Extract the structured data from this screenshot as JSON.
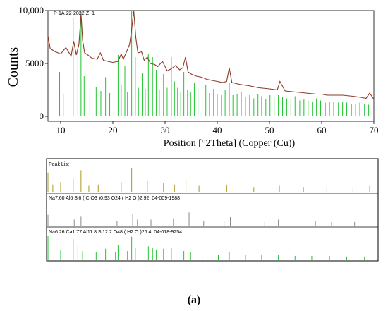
{
  "chart_data": [
    {
      "type": "line",
      "sample_label": "P-1A-22-2022-Z_1",
      "ylabel": "Counts",
      "xlabel": "Position [°2Theta] (Copper (Cu))",
      "xlim": [
        5,
        70
      ],
      "ylim": [
        0,
        10000
      ],
      "x_ticks": [
        "10",
        "20",
        "30",
        "40",
        "50",
        "60",
        "70"
      ],
      "y_ticks": [
        "0",
        "5000",
        "10,000"
      ],
      "grid": false,
      "series": [
        {
          "type": "line",
          "color": "#8b3a2a",
          "x": [
            5.0,
            6.0,
            7.0,
            7.5,
            8.0,
            9.0,
            10.0,
            11.0,
            12.0,
            12.5,
            13.0,
            13.5,
            13.9,
            14.2,
            14.6,
            15.2,
            16.0,
            17.0,
            17.6,
            18.2,
            19.0,
            20.0,
            21.0,
            21.6,
            22.0,
            22.7,
            23.2,
            23.6,
            24.0,
            24.4,
            24.8,
            25.5,
            26.0,
            26.6,
            27.2,
            28.0,
            28.6,
            29.5,
            30.4,
            31.2,
            32.0,
            32.8,
            33.4,
            33.9,
            34.4,
            35.0,
            36.0,
            37.0,
            38.0,
            39.0,
            40.0,
            41.0,
            41.8,
            42.3,
            42.8,
            43.6,
            44.6,
            46.0,
            47.0,
            48.0,
            50.0,
            51.5,
            52.0,
            53.0,
            55.0,
            57.0,
            59.0,
            60.0,
            61.0,
            62.5,
            64.0,
            66.0,
            67.5,
            68.5,
            69.2,
            70.0
          ],
          "y": [
            7000,
            6900,
            6600,
            7600,
            6400,
            6100,
            5900,
            6500,
            5700,
            7100,
            5800,
            6800,
            9700,
            7200,
            6000,
            5800,
            5500,
            5400,
            6000,
            5300,
            5200,
            5100,
            5200,
            5900,
            5400,
            6200,
            6800,
            8200,
            10000,
            7400,
            6000,
            6100,
            5300,
            5600,
            5000,
            4900,
            4700,
            5200,
            4300,
            4500,
            4800,
            4400,
            4600,
            5600,
            4200,
            4000,
            3800,
            3700,
            3500,
            3400,
            3300,
            3200,
            3300,
            4600,
            3200,
            3100,
            3000,
            2900,
            2800,
            2700,
            2600,
            2500,
            3300,
            2400,
            2300,
            2200,
            2100,
            2100,
            2000,
            2000,
            2000,
            1900,
            1800,
            1700,
            2200,
            1600
          ]
        },
        {
          "type": "stick",
          "color": "#22c432",
          "x": [
            7.3,
            7.5,
            9.8,
            10.5,
            12.4,
            13.3,
            13.9,
            14.5,
            15.6,
            16.8,
            17.7,
            18.6,
            19.4,
            20.2,
            21.0,
            21.6,
            22.3,
            22.8,
            23.6,
            24.3,
            24.9,
            25.6,
            26.2,
            26.8,
            27.6,
            28.3,
            28.9,
            29.7,
            30.4,
            31.2,
            31.8,
            32.4,
            33.0,
            33.6,
            34.3,
            34.9,
            35.6,
            36.3,
            37.1,
            37.8,
            38.5,
            39.3,
            40.0,
            40.8,
            41.5,
            42.3,
            43.0,
            43.8,
            44.6,
            45.4,
            46.2,
            47.0,
            47.8,
            48.5,
            49.3,
            50.1,
            50.9,
            51.7,
            52.5,
            53.3,
            54.1,
            54.9,
            55.8,
            56.6,
            57.4,
            58.2,
            59.0,
            59.8,
            60.7,
            61.5,
            62.3,
            63.2,
            64.0,
            64.8,
            65.7,
            66.5,
            67.3,
            68.2,
            69.0
          ],
          "y": [
            10000,
            9800,
            4200,
            2100,
            9300,
            7000,
            9900,
            3800,
            2600,
            2800,
            2400,
            3700,
            2200,
            2600,
            5800,
            3000,
            4800,
            2300,
            10000,
            5600,
            2700,
            4100,
            2600,
            5900,
            5600,
            4400,
            2500,
            4000,
            2700,
            5600,
            3300,
            2700,
            2300,
            4200,
            2500,
            2300,
            3200,
            2700,
            2300,
            3000,
            2200,
            2600,
            2100,
            2000,
            2500,
            3200,
            2000,
            2100,
            2300,
            1800,
            2000,
            1700,
            2100,
            1900,
            1600,
            2000,
            1800,
            2000,
            1800,
            1700,
            1600,
            1900,
            1500,
            1600,
            1500,
            1400,
            1700,
            1500,
            1300,
            1400,
            1400,
            1300,
            1400,
            1300,
            1200,
            1200,
            1300,
            1200,
            1100
          ]
        }
      ]
    },
    {
      "type": "table",
      "panels": [
        {
          "label": "Peak List",
          "color": "#a89a20",
          "x": [
            6.0,
            7.3,
            8.5,
            10.0,
            12.4,
            13.9,
            15.4,
            17.2,
            21.6,
            23.6,
            26.6,
            29.7,
            31.8,
            34.0,
            36.5,
            41.8,
            47.0,
            51.9,
            56.5,
            61.0,
            66.0,
            69.2
          ],
          "h": [
            0.6,
            0.8,
            0.3,
            0.4,
            0.55,
            0.9,
            0.25,
            0.3,
            0.4,
            1.0,
            0.45,
            0.35,
            0.3,
            0.5,
            0.25,
            0.3,
            0.2,
            0.25,
            0.2,
            0.2,
            0.15,
            0.25
          ]
        },
        {
          "label": "Na7.60 Al6 Si6 ( C O3 )0.93 O24 ( H2 O )2.92; 04-009-1988",
          "color": "#8a8a8a",
          "x": [
            7.5,
            12.6,
            13.9,
            20.8,
            23.8,
            24.7,
            27.3,
            31.6,
            34.6,
            37.4,
            41.3,
            42.5,
            49.1,
            51.7,
            58.8,
            61.9,
            66.3
          ],
          "h": [
            0.45,
            0.25,
            0.4,
            0.2,
            0.5,
            0.25,
            0.25,
            0.3,
            0.55,
            0.2,
            0.2,
            0.35,
            0.15,
            0.25,
            0.2,
            0.15,
            0.15
          ]
        },
        {
          "label": "Na6.26 Ca1.77 Al11.8 Si12.2 O48 ( H2 O )26.4; 04-018-9254",
          "color": "#22c432",
          "x": [
            7.3,
            10.0,
            12.4,
            13.3,
            14.2,
            16.8,
            18.6,
            20.5,
            21.0,
            22.8,
            23.6,
            24.3,
            26.8,
            27.6,
            28.3,
            29.7,
            31.2,
            33.6,
            34.9,
            37.1,
            40.2,
            42.3,
            45.4,
            48.5,
            51.7,
            54.9,
            58.1,
            61.5,
            64.8,
            68.2
          ],
          "h": [
            1.0,
            0.4,
            0.85,
            0.6,
            0.35,
            0.3,
            0.45,
            0.3,
            0.6,
            0.35,
            0.95,
            0.5,
            0.55,
            0.5,
            0.4,
            0.45,
            0.5,
            0.35,
            0.3,
            0.25,
            0.2,
            0.3,
            0.2,
            0.2,
            0.2,
            0.15,
            0.15,
            0.15,
            0.12,
            0.12
          ]
        }
      ]
    }
  ],
  "caption": "(a)"
}
